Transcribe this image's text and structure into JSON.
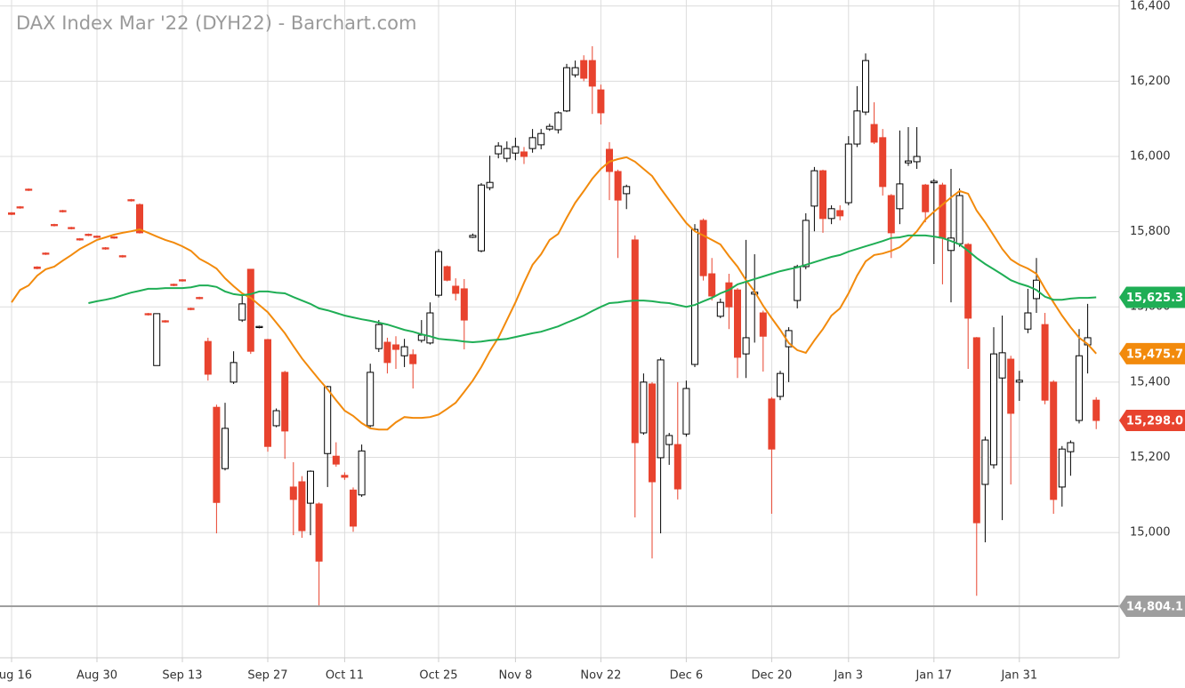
{
  "chart_data": {
    "type": "candlestick",
    "title": "DAX Index Mar '22 (DYH22) - Barchart.com",
    "categories": [
      "Aug 16",
      null,
      null,
      null,
      null,
      null,
      null,
      null,
      null,
      null,
      "Aug 30",
      null,
      null,
      null,
      null,
      null,
      null,
      null,
      null,
      null,
      "Sep 13",
      null,
      null,
      null,
      null,
      null,
      null,
      null,
      null,
      null,
      "Sep 27",
      null,
      null,
      null,
      null,
      null,
      null,
      null,
      null,
      "Oct 11",
      null,
      null,
      null,
      null,
      null,
      null,
      null,
      null,
      null,
      null,
      "Oct 25",
      null,
      null,
      null,
      null,
      null,
      null,
      null,
      null,
      "Nov 8",
      null,
      null,
      null,
      null,
      null,
      null,
      null,
      null,
      null,
      "Nov 22",
      null,
      null,
      null,
      null,
      null,
      null,
      null,
      null,
      null,
      "Dec 6",
      null,
      null,
      null,
      null,
      null,
      null,
      null,
      null,
      null,
      "Dec 20",
      null,
      null,
      null,
      null,
      null,
      null,
      null,
      null,
      "Jan 3",
      null,
      null,
      null,
      null,
      null,
      null,
      null,
      null,
      null,
      "Jan 17",
      null,
      null,
      null,
      null,
      null,
      null,
      null,
      null,
      null,
      "Jan 31",
      null,
      null,
      null,
      null,
      null,
      null,
      null,
      null,
      null
    ],
    "open": [
      15850,
      15866,
      15913,
      15706,
      15743,
      15819,
      15856,
      15811,
      15781,
      15793,
      15788,
      15757,
      15786,
      15736,
      15885,
      15872,
      15582,
      15444,
      15563,
      15660,
      15672,
      15596,
      15625,
      15508,
      15333,
      15170,
      15400,
      15565,
      15700,
      15545,
      15513,
      15284,
      15426,
      15121,
      15135,
      15078,
      15076,
      15210,
      15203,
      15152,
      15113,
      15100,
      15284,
      15489,
      15506,
      15499,
      15470,
      15473,
      15511,
      15504,
      15631,
      15707,
      15655,
      15648,
      15785,
      15749,
      15917,
      16007,
      15995,
      16009,
      16012,
      16021,
      16031,
      16073,
      16071,
      16121,
      16217,
      16255,
      16255,
      16177,
      16019,
      15960,
      15901,
      15778,
      15265,
      15395,
      15199,
      15234,
      15234,
      15262,
      15447,
      15830,
      15688,
      15575,
      15664,
      15645,
      15475,
      15634,
      15584,
      15355,
      15362,
      15494,
      15617,
      15707,
      15868,
      15962,
      15835,
      15856,
      15877,
      16033,
      16118,
      16085,
      16050,
      15896,
      15861,
      15983,
      15986,
      15924,
      15930,
      15924,
      15750,
      15768,
      15766,
      15518,
      15128,
      15180,
      15411,
      15461,
      15400,
      15541,
      15622,
      15553,
      15400,
      15121,
      15215,
      15298,
      15499,
      15352
    ],
    "high": [
      15852,
      15868,
      15915,
      15708,
      15745,
      15821,
      15858,
      15813,
      15783,
      15795,
      15790,
      15759,
      15788,
      15738,
      15887,
      15875,
      15584,
      15582,
      15565,
      15662,
      15674,
      15598,
      15627,
      15518,
      15340,
      15345,
      15482,
      15631,
      15700,
      15550,
      15515,
      15330,
      15430,
      15187,
      15150,
      15165,
      15080,
      15390,
      15240,
      15160,
      15120,
      15234,
      15449,
      15565,
      15518,
      15522,
      15515,
      15487,
      15565,
      15612,
      15754,
      15710,
      15676,
      15674,
      15795,
      15929,
      16002,
      16038,
      16040,
      16050,
      16025,
      16073,
      16073,
      16087,
      16120,
      16246,
      16255,
      16269,
      16293,
      16191,
      16038,
      15965,
      15925,
      15790,
      15423,
      15400,
      15465,
      15265,
      15400,
      15404,
      15820,
      15835,
      15730,
      15622,
      15688,
      15650,
      15778,
      15740,
      15590,
      15360,
      15430,
      15546,
      15712,
      15849,
      15972,
      15965,
      15870,
      15870,
      16054,
      16187,
      16274,
      16144,
      16073,
      15900,
      16069,
      16078,
      16078,
      15927,
      15940,
      15930,
      15967,
      15915,
      15770,
      15520,
      15255,
      15546,
      15577,
      15470,
      15430,
      15648,
      15730,
      15584,
      15405,
      15230,
      15245,
      15541,
      15608,
      15360
    ],
    "low": [
      15844,
      15861,
      15908,
      15700,
      15738,
      15814,
      15851,
      15806,
      15776,
      15788,
      15783,
      15752,
      15781,
      15731,
      15880,
      15795,
      15577,
      15444,
      15558,
      15655,
      15667,
      15591,
      15620,
      15404,
      14998,
      15165,
      15395,
      15560,
      15475,
      15543,
      15215,
      15280,
      15196,
      14993,
      14986,
      14993,
      14804.1,
      15121,
      15175,
      15140,
      15002,
      15095,
      15280,
      15480,
      15423,
      15435,
      15440,
      15383,
      15505,
      15500,
      15625,
      15668,
      15617,
      15487,
      15783,
      15745,
      15910,
      15995,
      15985,
      15990,
      15980,
      16010,
      16019,
      16068,
      16061,
      16118,
      16210,
      16200,
      16113,
      16085,
      15884,
      15730,
      15860,
      15040,
      15260,
      14931,
      14998,
      15180,
      15088,
      15255,
      15440,
      15670,
      15617,
      15570,
      15541,
      15411,
      15411,
      15505,
      15428,
      15050,
      15352,
      15400,
      15596,
      15700,
      15801,
      15797,
      15820,
      15830,
      15870,
      16025,
      16110,
      16033,
      15896,
      15730,
      15820,
      15975,
      15967,
      15825,
      15714,
      15660,
      15612,
      15760,
      15435,
      14832,
      14974,
      15170,
      15033,
      15128,
      15350,
      15530,
      15584,
      15341,
      15050,
      15069,
      15151,
      15290,
      15423,
      15275
    ],
    "close": [
      15846,
      15863,
      15910,
      15702,
      15740,
      15816,
      15853,
      15808,
      15778,
      15790,
      15785,
      15754,
      15783,
      15733,
      15882,
      15797,
      15579,
      15582,
      15560,
      15657,
      15669,
      15593,
      15622,
      15421,
      15080,
      15277,
      15452,
      15608,
      15482,
      15548,
      15229,
      15324,
      15270,
      15088,
      15005,
      15163,
      14924,
      15388,
      15182,
      15147,
      15017,
      15217,
      15426,
      15553,
      15452,
      15487,
      15494,
      15449,
      15525,
      15584,
      15747,
      15671,
      15636,
      15565,
      15790,
      15924,
      15931,
      16028,
      16021,
      16026,
      16000,
      16050,
      16061,
      16080,
      16116,
      16236,
      16236,
      16208,
      16187,
      16116,
      15960,
      15884,
      15920,
      15239,
      15400,
      15135,
      15459,
      15258,
      15116,
      15383,
      15806,
      15683,
      15629,
      15612,
      15600,
      15466,
      15518,
      15639,
      15522,
      15222,
      15423,
      15537,
      15707,
      15830,
      15962,
      15835,
      15861,
      15842,
      16033,
      16121,
      16255,
      16038,
      15920,
      15797,
      15927,
      15988,
      16000,
      15853,
      15934,
      15783,
      15783,
      15896,
      15570,
      15026,
      15246,
      15475,
      15478,
      15317,
      15405,
      15584,
      15671,
      15352,
      15088,
      15222,
      15239,
      15470,
      15518,
      15298
    ],
    "up_color": "#000000",
    "down_color": "#e8432e",
    "series": [
      {
        "color": "#f28a0c",
        "values": [
          15612,
          15645,
          15657,
          15683,
          15700,
          15707,
          15723,
          15738,
          15754,
          15766,
          15778,
          15785,
          15792,
          15797,
          15801,
          15806,
          15797,
          15787,
          15778,
          15771,
          15761,
          15749,
          15728,
          15716,
          15702,
          15676,
          15655,
          15636,
          15624,
          15605,
          15586,
          15558,
          15530,
          15496,
          15463,
          15435,
          15407,
          15381,
          15352,
          15324,
          15310,
          15291,
          15277,
          15274,
          15274,
          15293,
          15307,
          15305,
          15305,
          15307,
          15314,
          15329,
          15345,
          15374,
          15404,
          15440,
          15482,
          15518,
          15565,
          15612,
          15664,
          15712,
          15740,
          15778,
          15794,
          15837,
          15877,
          15908,
          15941,
          15967,
          15986,
          15993,
          15998,
          15986,
          15967,
          15948,
          15915,
          15884,
          15853,
          15823,
          15801,
          15790,
          15778,
          15766,
          15735,
          15707,
          15671,
          15641,
          15603,
          15570,
          15539,
          15504,
          15485,
          15478,
          15511,
          15541,
          15577,
          15596,
          15636,
          15683,
          15721,
          15738,
          15742,
          15749,
          15759,
          15778,
          15801,
          15832,
          15853,
          15872,
          15891,
          15908,
          15901,
          15856,
          15825,
          15790,
          15754,
          15726,
          15712,
          15702,
          15688,
          15648,
          15612,
          15577,
          15546,
          15518,
          15501,
          15475.7
        ]
      },
      {
        "color": "#1fae55",
        "values": [
          null,
          null,
          null,
          null,
          null,
          null,
          null,
          null,
          null,
          15610,
          15615,
          15619,
          15624,
          15631,
          15638,
          15643,
          15648,
          15648,
          15650,
          15650,
          15650,
          15652,
          15657,
          15657,
          15653,
          15641,
          15634,
          15631,
          15634,
          15641,
          15641,
          15638,
          15636,
          15626,
          15617,
          15608,
          15596,
          15591,
          15584,
          15577,
          15572,
          15567,
          15563,
          15558,
          15553,
          15546,
          15539,
          15534,
          15527,
          15522,
          15515,
          15513,
          15511,
          15508,
          15506,
          15508,
          15511,
          15513,
          15515,
          15520,
          15525,
          15530,
          15534,
          15541,
          15548,
          15558,
          15567,
          15577,
          15589,
          15600,
          15610,
          15612,
          15615,
          15617,
          15617,
          15615,
          15612,
          15610,
          15605,
          15600,
          15605,
          15615,
          15624,
          15636,
          15645,
          15660,
          15667,
          15674,
          15681,
          15688,
          15695,
          15700,
          15705,
          15712,
          15719,
          15726,
          15733,
          15738,
          15747,
          15754,
          15761,
          15768,
          15775,
          15783,
          15785,
          15790,
          15790,
          15790,
          15787,
          15783,
          15775,
          15766,
          15749,
          15730,
          15714,
          15700,
          15686,
          15671,
          15662,
          15655,
          15645,
          15627,
          15619,
          15619,
          15622,
          15624,
          15624,
          15625.3
        ]
      }
    ],
    "ylim": [
      14667,
      16416
    ],
    "yticks": [
      {
        "value": 15000,
        "label": "15,000"
      },
      {
        "value": 15200,
        "label": "15,200"
      },
      {
        "value": 15400,
        "label": "15,400"
      },
      {
        "value": 15600,
        "label": "15,600"
      },
      {
        "value": 15800,
        "label": "15,800"
      },
      {
        "value": 16000,
        "label": "16,000"
      },
      {
        "value": 16200,
        "label": "16,200"
      },
      {
        "value": 16400,
        "label": "16,400"
      }
    ],
    "grid": true,
    "price_tags": [
      {
        "value": 15625.3,
        "label": "15,625.3",
        "color": "#1fae55"
      },
      {
        "value": 15475.7,
        "label": "15,475.7",
        "color": "#f28a0c"
      },
      {
        "value": 15298.0,
        "label": "15,298.0",
        "color": "#e8432e"
      },
      {
        "value": 14804.1,
        "label": "14,804.1",
        "color": "#9e9e9e",
        "line": true
      }
    ]
  }
}
